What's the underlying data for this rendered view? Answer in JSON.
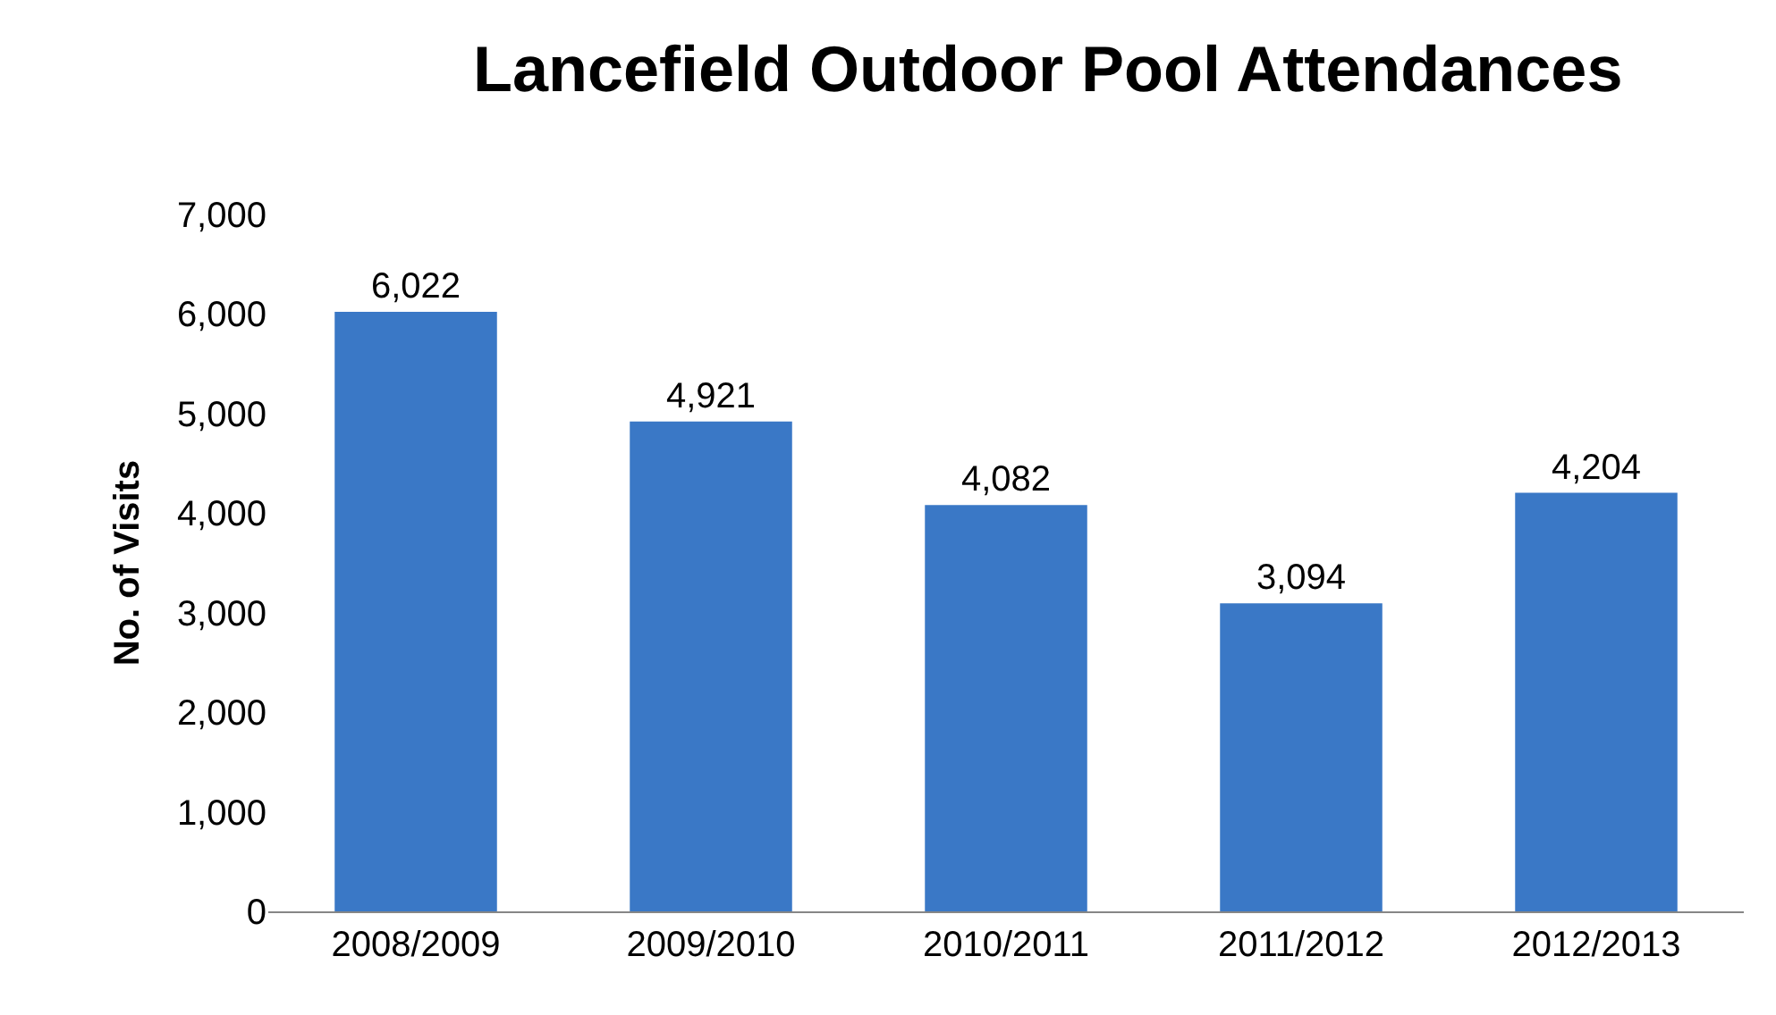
{
  "chart_data": {
    "type": "bar",
    "title": "Lancefield Outdoor Pool Attendances",
    "ylabel": "No. of Visits",
    "categories": [
      "2008/2009",
      "2009/2010",
      "2010/2011",
      "2011/2012",
      "2012/2013"
    ],
    "values": [
      6022,
      4921,
      4082,
      3094,
      4204
    ],
    "value_labels": [
      "6,022",
      "4,921",
      "4,082",
      "3,094",
      "4,204"
    ],
    "color": "#3a78c6",
    "ylim": [
      0,
      7000
    ],
    "yticks": [
      {
        "value": 0,
        "label": "0"
      },
      {
        "value": 1000,
        "label": "1,000"
      },
      {
        "value": 2000,
        "label": "2,000"
      },
      {
        "value": 3000,
        "label": "3,000"
      },
      {
        "value": 4000,
        "label": "4,000"
      },
      {
        "value": 5000,
        "label": "5,000"
      },
      {
        "value": 6000,
        "label": "6,000"
      },
      {
        "value": 7000,
        "label": "7,000"
      }
    ],
    "legend": false
  }
}
